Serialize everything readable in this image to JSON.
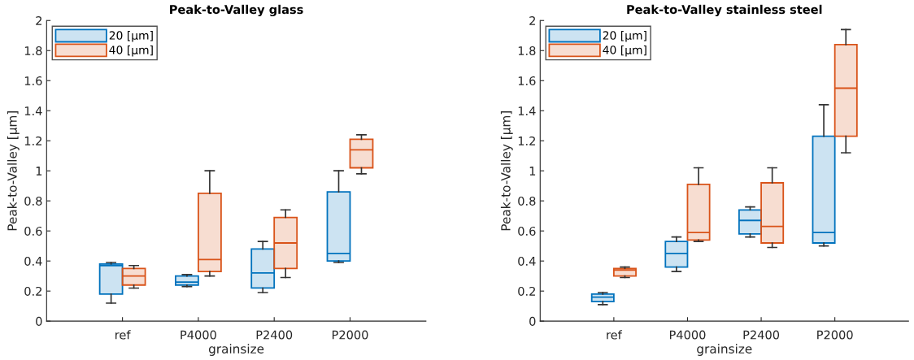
{
  "chart_data": [
    {
      "type": "box",
      "title": "Peak-to-Valley glass",
      "xlabel": "grainsize",
      "ylabel": "Peak-to-Valley [μm]",
      "categories": [
        "ref",
        "P4000",
        "P2400",
        "P2000"
      ],
      "ylim": [
        0,
        2
      ],
      "yticks": [
        0,
        0.2,
        0.4,
        0.6,
        0.8,
        1,
        1.2,
        1.4,
        1.6,
        1.8,
        2
      ],
      "legend": "top left",
      "grid": false,
      "series": [
        {
          "name": "20 [μm]",
          "color": "#0072bd",
          "boxes": [
            {
              "low": 0.12,
              "q1": 0.18,
              "median": 0.37,
              "q3": 0.38,
              "high": 0.39
            },
            {
              "low": 0.23,
              "q1": 0.24,
              "median": 0.26,
              "q3": 0.3,
              "high": 0.31
            },
            {
              "low": 0.19,
              "q1": 0.22,
              "median": 0.32,
              "q3": 0.48,
              "high": 0.53
            },
            {
              "low": 0.39,
              "q1": 0.4,
              "median": 0.45,
              "q3": 0.86,
              "high": 1.0
            }
          ]
        },
        {
          "name": "40 [μm]",
          "color": "#d95319",
          "boxes": [
            {
              "low": 0.22,
              "q1": 0.24,
              "median": 0.3,
              "q3": 0.35,
              "high": 0.37
            },
            {
              "low": 0.3,
              "q1": 0.33,
              "median": 0.41,
              "q3": 0.85,
              "high": 1.0
            },
            {
              "low": 0.29,
              "q1": 0.35,
              "median": 0.52,
              "q3": 0.69,
              "high": 0.74
            },
            {
              "low": 0.98,
              "q1": 1.02,
              "median": 1.14,
              "q3": 1.21,
              "high": 1.24
            }
          ]
        }
      ]
    },
    {
      "type": "box",
      "title": "Peak-to-Valley stainless steel",
      "xlabel": "grainsize",
      "ylabel": "Peak-to-Valley [μm]",
      "categories": [
        "ref",
        "P4000",
        "P2400",
        "P2000"
      ],
      "ylim": [
        0,
        2
      ],
      "yticks": [
        0,
        0.2,
        0.4,
        0.6,
        0.8,
        1,
        1.2,
        1.4,
        1.6,
        1.8,
        2
      ],
      "legend": "top left",
      "grid": false,
      "series": [
        {
          "name": "20 [μm]",
          "color": "#0072bd",
          "boxes": [
            {
              "low": 0.11,
              "q1": 0.13,
              "median": 0.16,
              "q3": 0.18,
              "high": 0.19
            },
            {
              "low": 0.33,
              "q1": 0.36,
              "median": 0.45,
              "q3": 0.53,
              "high": 0.56
            },
            {
              "low": 0.56,
              "q1": 0.58,
              "median": 0.67,
              "q3": 0.74,
              "high": 0.76
            },
            {
              "low": 0.5,
              "q1": 0.52,
              "median": 0.59,
              "q3": 1.23,
              "high": 1.44
            }
          ]
        },
        {
          "name": "40 [μm]",
          "color": "#d95319",
          "boxes": [
            {
              "low": 0.29,
              "q1": 0.3,
              "median": 0.34,
              "q3": 0.35,
              "high": 0.36
            },
            {
              "low": 0.53,
              "q1": 0.54,
              "median": 0.59,
              "q3": 0.91,
              "high": 1.02
            },
            {
              "low": 0.49,
              "q1": 0.52,
              "median": 0.63,
              "q3": 0.92,
              "high": 1.02
            },
            {
              "low": 1.12,
              "q1": 1.23,
              "median": 1.55,
              "q3": 1.84,
              "high": 1.94
            }
          ]
        }
      ]
    }
  ]
}
